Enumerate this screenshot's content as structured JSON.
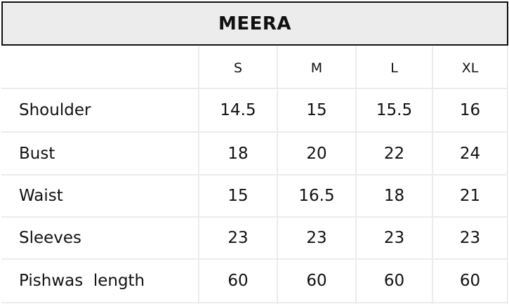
{
  "table": {
    "title": "MEERA",
    "columns": [
      "S",
      "M",
      "L",
      "XL"
    ],
    "rows": [
      {
        "label": "Shoulder",
        "values": [
          "14.5",
          "15",
          "15.5",
          "16"
        ]
      },
      {
        "label": "Bust",
        "values": [
          "18",
          "20",
          "22",
          "24"
        ]
      },
      {
        "label": "Waist",
        "values": [
          "15",
          "16.5",
          "18",
          "21"
        ]
      },
      {
        "label": "Sleeves",
        "values": [
          "23",
          "23",
          "23",
          "23"
        ]
      },
      {
        "label": "Pishwas  length",
        "values": [
          "60",
          "60",
          "60",
          "60"
        ]
      }
    ]
  }
}
